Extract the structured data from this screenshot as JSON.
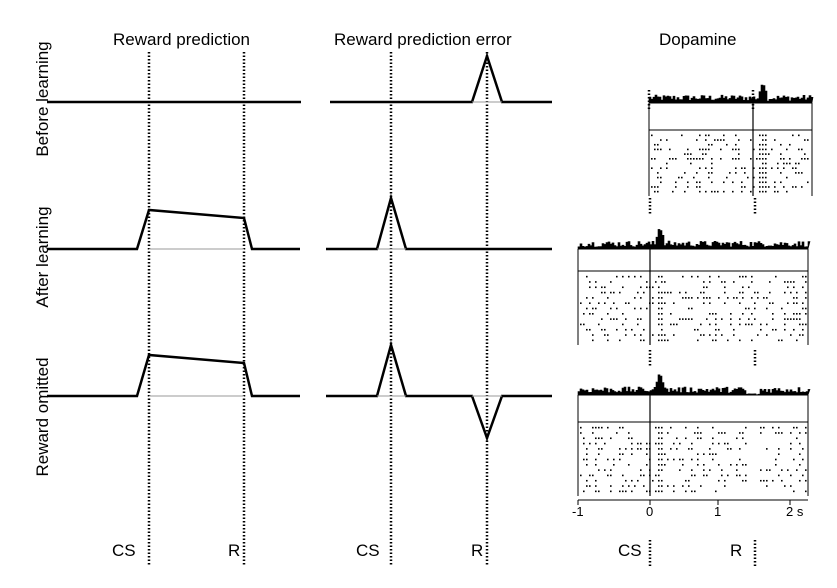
{
  "columns": {
    "reward_prediction": "Reward prediction",
    "reward_prediction_error": "Reward prediction error",
    "dopamine": "Dopamine"
  },
  "rows": {
    "before": "Before learning",
    "after": "After learning",
    "omitted": "Reward omitted"
  },
  "markers": {
    "cs": "CS",
    "r": "R"
  },
  "axis": {
    "ticks": [
      "-1",
      "0",
      "1",
      "2 s"
    ]
  },
  "colors": {
    "line": "#000000",
    "baseline_thin": "#9a9a9a",
    "background": "#ffffff"
  }
}
